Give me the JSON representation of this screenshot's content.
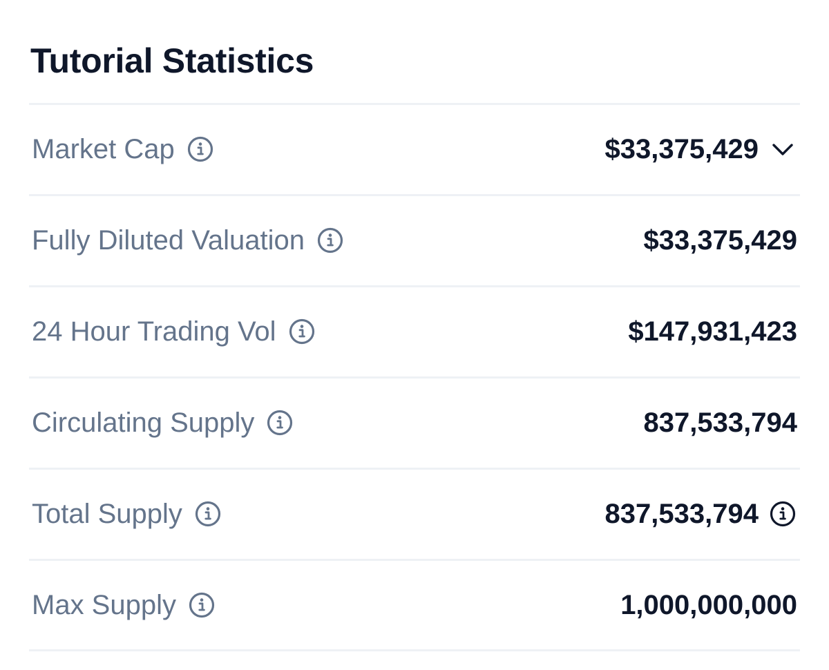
{
  "panel": {
    "title": "Tutorial Statistics"
  },
  "colors": {
    "title": "#0f172a",
    "label": "#64748b",
    "value": "#0f172a",
    "divider": "#eef1f5",
    "info_icon_muted": "#64748b",
    "info_icon_dark": "#0f172a"
  },
  "rows": [
    {
      "label": "Market Cap",
      "label_icon": "info-circle-icon",
      "value": "$33,375,429",
      "value_icon": "chevron-down-icon"
    },
    {
      "label": "Fully Diluted Valuation",
      "label_icon": "info-circle-icon",
      "value": "$33,375,429"
    },
    {
      "label": "24 Hour Trading Vol",
      "label_icon": "info-circle-icon",
      "value": "$147,931,423"
    },
    {
      "label": "Circulating Supply",
      "label_icon": "info-circle-icon",
      "value": "837,533,794"
    },
    {
      "label": "Total Supply",
      "label_icon": "info-circle-icon",
      "value": "837,533,794",
      "value_icon": "info-circle-icon"
    },
    {
      "label": "Max Supply",
      "label_icon": "info-circle-icon",
      "value": "1,000,000,000"
    }
  ]
}
